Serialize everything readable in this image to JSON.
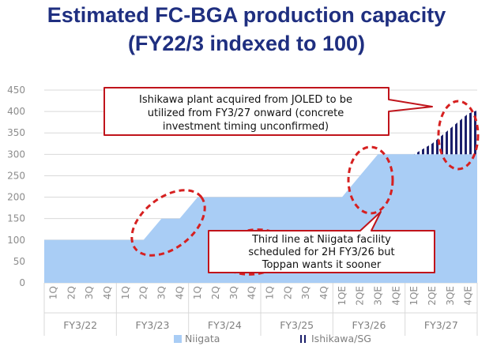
{
  "title": {
    "line1": "Estimated FC-BGA production capacity",
    "line2": "(FY22/3 indexed to 100)"
  },
  "chart_data": {
    "type": "area",
    "ylim": [
      0,
      450
    ],
    "yticks": [
      0,
      50,
      100,
      150,
      200,
      250,
      300,
      350,
      400,
      450
    ],
    "grid": true,
    "legend_position": "bottom",
    "quarters": [
      "1Q",
      "2Q",
      "3Q",
      "4Q",
      "1Q",
      "2Q",
      "3Q",
      "4Q",
      "1Q",
      "2Q",
      "3Q",
      "4Q",
      "1Q",
      "2Q",
      "3Q",
      "4Q",
      "1QE",
      "2QE",
      "3QE",
      "4QE",
      "1QE",
      "2QE",
      "3QE",
      "4QE"
    ],
    "fiscal_years": [
      "FY3/22",
      "FY3/23",
      "FY3/24",
      "FY3/25",
      "FY3/26",
      "FY3/27"
    ],
    "series": [
      {
        "name": "Niigata",
        "color": "#a9cdf5",
        "values": [
          100,
          100,
          100,
          100,
          100,
          100,
          150,
          150,
          200,
          200,
          200,
          200,
          200,
          200,
          200,
          200,
          200,
          250,
          300,
          300,
          300,
          300,
          300,
          300
        ]
      },
      {
        "name": "Ishikawa/SG",
        "color": "#1b1f6b",
        "pattern": "vertical-stripes",
        "values": [
          0,
          0,
          0,
          0,
          0,
          0,
          0,
          0,
          0,
          0,
          0,
          0,
          0,
          0,
          0,
          0,
          0,
          0,
          0,
          0,
          0,
          25,
          60,
          95
        ]
      }
    ],
    "annotations": [
      {
        "id": "ishikawa",
        "lines": [
          "Ishikawa plant acquired from JOLED to be",
          "utilized from FY3/27 onward (concrete",
          "investment timing unconfirmed)"
        ]
      },
      {
        "id": "niigata",
        "lines": [
          "Third line at Niigata facility",
          "scheduled for 2H FY3/26 but",
          "Toppan wants it sooner"
        ]
      }
    ]
  },
  "colors": {
    "title": "#1f2f80",
    "callout_border": "#c0141b",
    "dashed_ellipse": "#d62020",
    "grid": "#d9d9d9",
    "axis_text": "#8c8c8c"
  }
}
